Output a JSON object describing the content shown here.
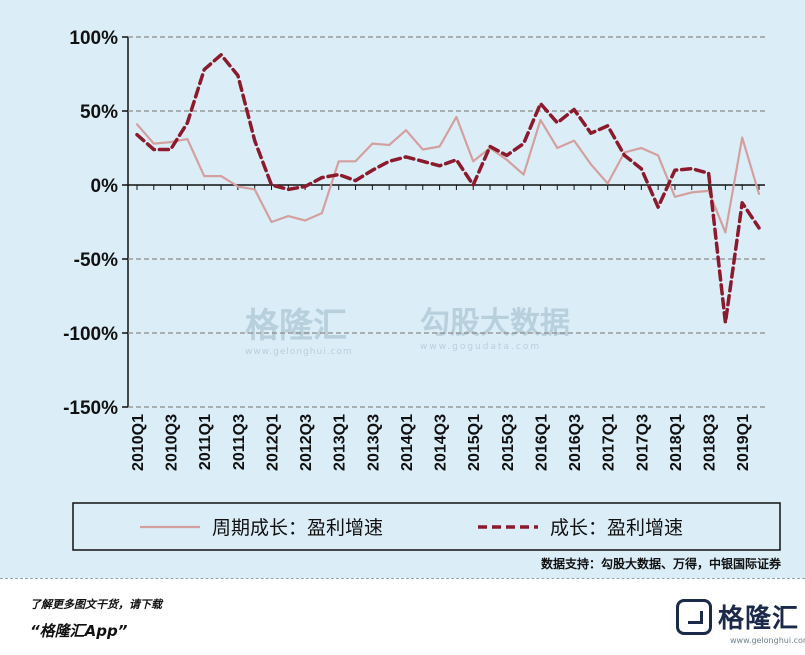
{
  "chart_data": {
    "type": "line",
    "x": [
      "2010Q1",
      "2010Q2",
      "2010Q3",
      "2010Q4",
      "2011Q1",
      "2011Q2",
      "2011Q3",
      "2011Q4",
      "2012Q1",
      "2012Q2",
      "2012Q3",
      "2012Q4",
      "2013Q1",
      "2013Q2",
      "2013Q3",
      "2013Q4",
      "2014Q1",
      "2014Q2",
      "2014Q3",
      "2014Q4",
      "2015Q1",
      "2015Q2",
      "2015Q3",
      "2015Q4",
      "2016Q1",
      "2016Q2",
      "2016Q3",
      "2016Q4",
      "2017Q1",
      "2017Q2",
      "2017Q3",
      "2017Q4",
      "2018Q1",
      "2018Q2",
      "2018Q3",
      "2018Q4",
      "2019Q1",
      "2019Q2"
    ],
    "tick_labels": [
      "2010Q1",
      "2010Q3",
      "2011Q1",
      "2011Q3",
      "2012Q1",
      "2012Q3",
      "2013Q1",
      "2013Q3",
      "2014Q1",
      "2014Q3",
      "2015Q1",
      "2015Q3",
      "2016Q1",
      "2016Q3",
      "2017Q1",
      "2017Q3",
      "2018Q1",
      "2018Q3",
      "2019Q1"
    ],
    "y_ticks": [
      "100%",
      "50%",
      "0%",
      "-50%",
      "-100%",
      "-150%"
    ],
    "ylim": [
      -150,
      100
    ],
    "grid": "horizontal dashed",
    "legend_position": "bottom",
    "series": [
      {
        "name": "周期成长：盈利增速",
        "style": "solid",
        "color": "#d4a09f",
        "values": [
          41,
          28,
          29,
          31,
          6,
          6,
          -1,
          -3,
          -25,
          -21,
          -24,
          -19,
          16,
          16,
          28,
          27,
          37,
          24,
          26,
          46,
          16,
          25,
          17,
          7,
          44,
          25,
          30,
          14,
          1,
          22,
          25,
          20,
          -8,
          -5,
          -4,
          -32,
          32,
          -6
        ]
      },
      {
        "name": "成长：盈利增速",
        "style": "dashed",
        "color": "#8b1a2c",
        "values": [
          34,
          24,
          24,
          42,
          78,
          88,
          74,
          30,
          0,
          -3,
          -1,
          5,
          7,
          3,
          10,
          16,
          19,
          16,
          13,
          17,
          0,
          26,
          20,
          28,
          55,
          42,
          51,
          35,
          40,
          20,
          11,
          -15,
          10,
          11,
          8,
          -93,
          -12,
          -29
        ]
      }
    ]
  },
  "source_text": "数据支持：勾股大数据、万得，中银国际证券",
  "footer": {
    "line1": "了解更多图文干货，请下载",
    "line2": "“格隆汇App”"
  },
  "watermark": {
    "brand1": "格隆汇",
    "url1": "www.gelonghui.com",
    "brand2": "勾股大数据",
    "url2": "www.gogudata.com"
  },
  "logo": {
    "text": "格隆汇",
    "sub": "www.gelonghui.com"
  },
  "colors": {
    "panel_bg": "#dbeef8",
    "grid": "#8a8a8a",
    "series1": "#d4a09f",
    "series2": "#8b1a2c"
  }
}
